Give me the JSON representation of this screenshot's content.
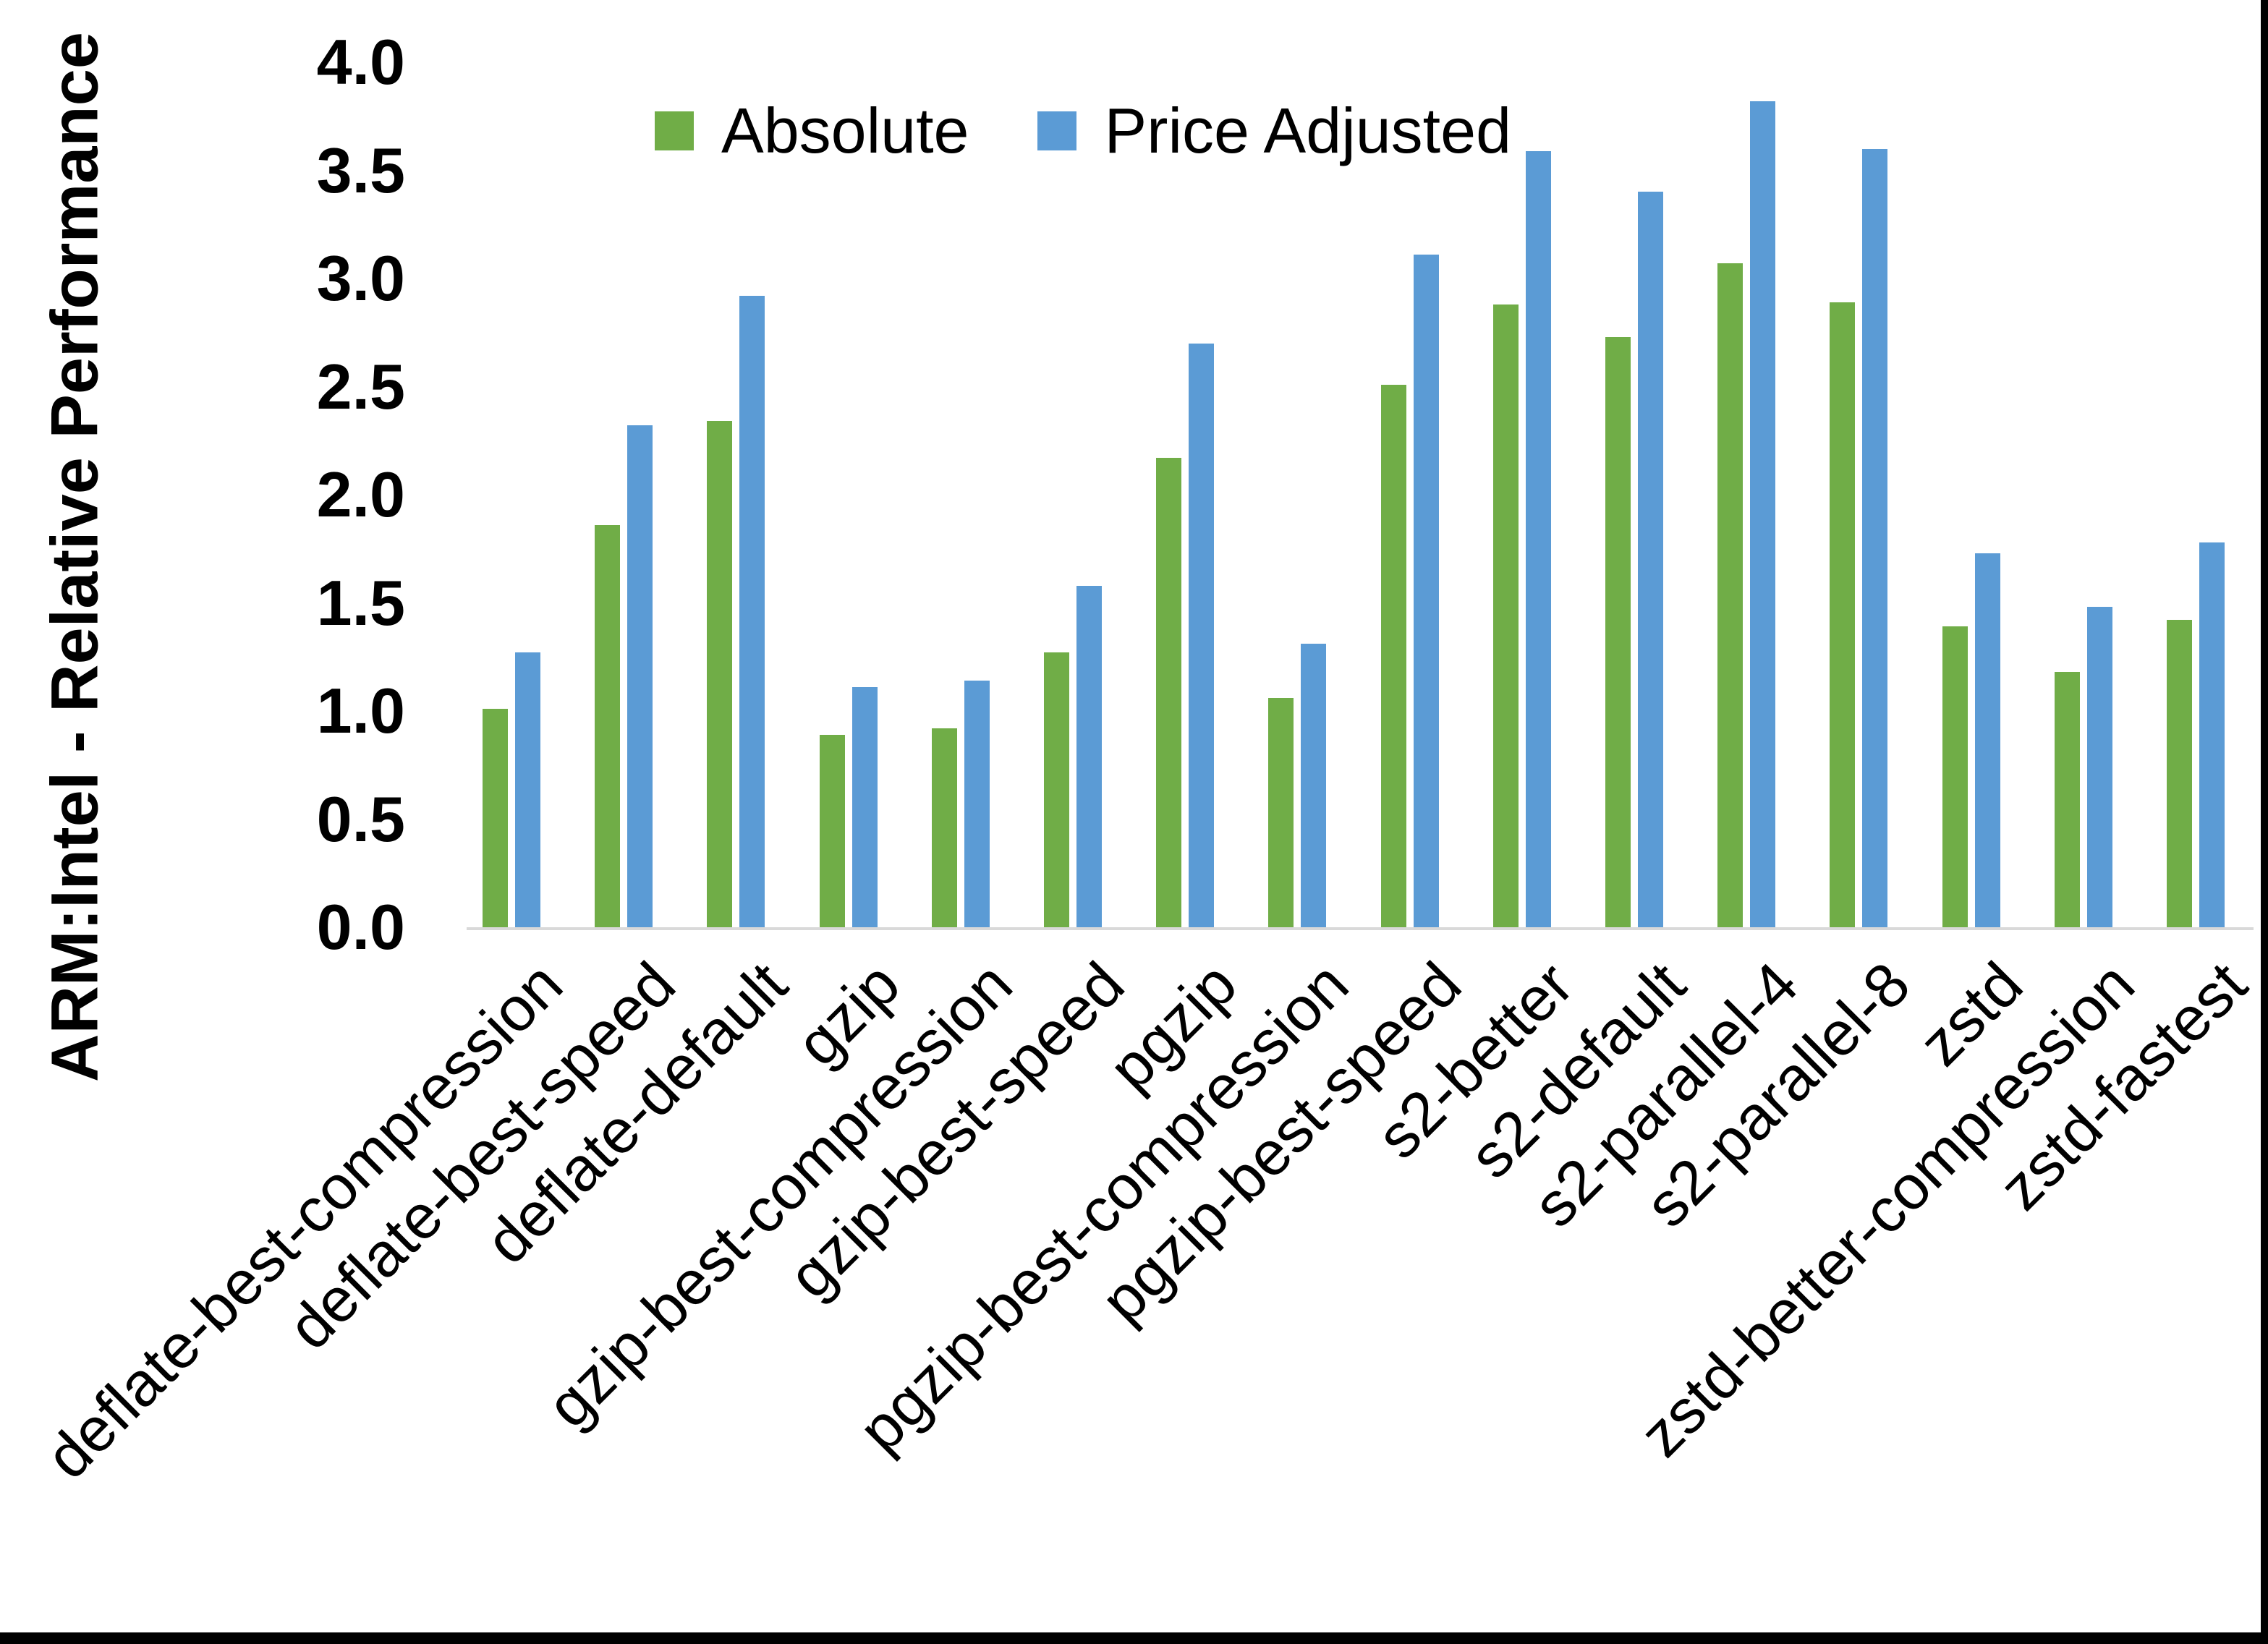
{
  "figure": {
    "background": "#FFFFFF",
    "border_color": "#000000",
    "axis_line_color": "#D9D9D9",
    "text_color": "#000000"
  },
  "legend": {
    "position": "top-center",
    "items": [
      {
        "label": "Absolute",
        "color": "#70AD47"
      },
      {
        "label": "Price Adjusted",
        "color": "#5B9BD5"
      }
    ]
  },
  "chart_data": {
    "type": "bar",
    "title": "",
    "xlabel": "",
    "ylabel": "ARM:Intel - Relative Performance",
    "ylim": [
      0,
      4
    ],
    "ytick_step": 0.5,
    "ytick_labels": [
      "0.0",
      "0.5",
      "1.0",
      "1.5",
      "2.0",
      "2.5",
      "3.0",
      "3.5",
      "4.0"
    ],
    "grid": false,
    "legend_position": "top",
    "bar_orientation": "vertical",
    "categories": [
      "deflate-best-compression",
      "deflate-best-speed",
      "deflate-default",
      "gzip",
      "gzip-best-compression",
      "gzip-best-speed",
      "pgzip",
      "pgzip-best-compression",
      "pgzip-best-speed",
      "s2-better",
      "s2-default",
      "s2-parallel-4",
      "s2-parallel-8",
      "zstd",
      "zstd-better-compression",
      "zstd-fastest"
    ],
    "series": [
      {
        "name": "Absolute",
        "color": "#70AD47",
        "values": [
          1.01,
          1.86,
          2.34,
          0.89,
          0.92,
          1.27,
          2.17,
          1.06,
          2.51,
          2.88,
          2.73,
          3.07,
          2.89,
          1.39,
          1.18,
          1.42
        ]
      },
      {
        "name": "Price Adjusted",
        "color": "#5B9BD5",
        "values": [
          1.27,
          2.32,
          2.92,
          1.11,
          1.14,
          1.58,
          2.7,
          1.31,
          3.11,
          3.59,
          3.4,
          3.82,
          3.6,
          1.73,
          1.48,
          1.78
        ]
      }
    ]
  }
}
